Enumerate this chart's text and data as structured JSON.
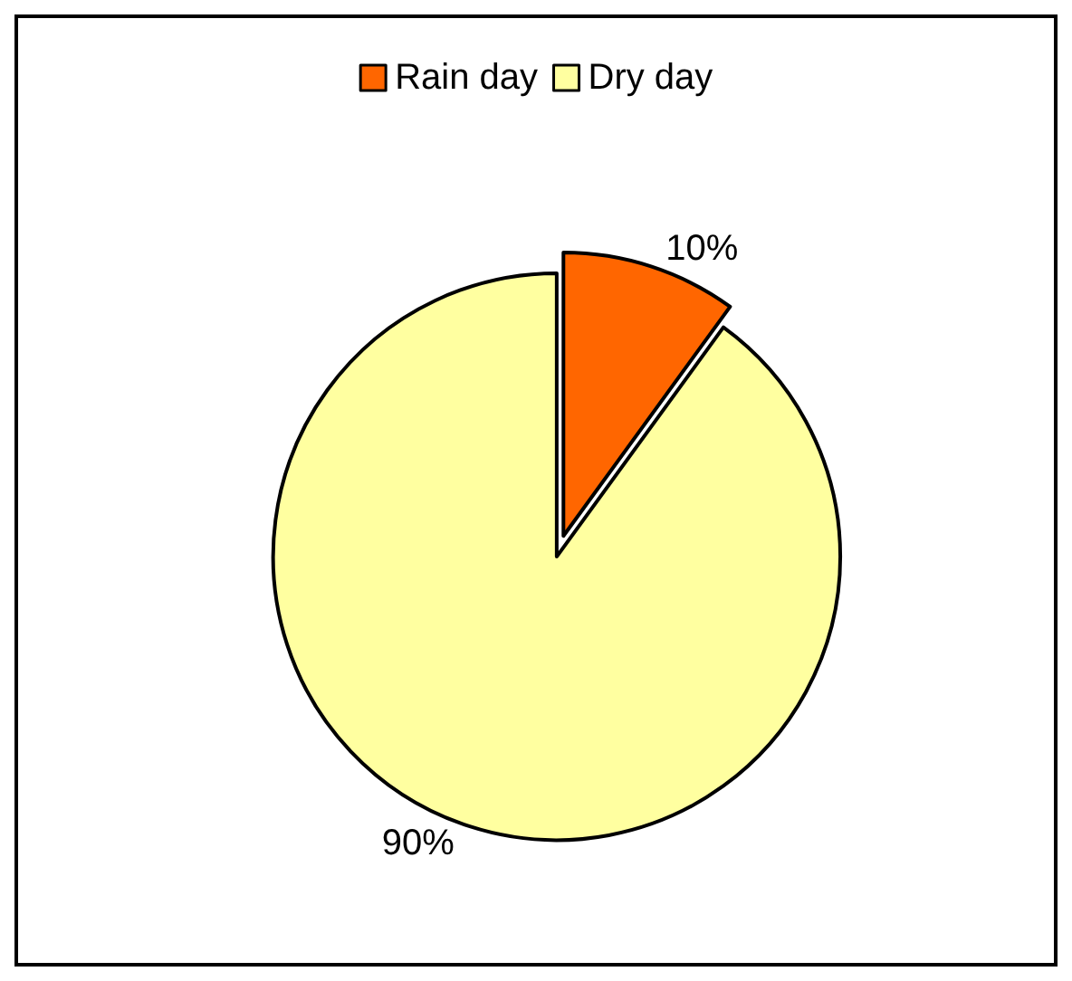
{
  "chart_data": {
    "type": "pie",
    "categories": [
      "Rain day",
      "Dry day"
    ],
    "values": [
      10,
      90
    ],
    "colors": [
      "#ff6600",
      "#ffffa0"
    ],
    "value_labels": [
      "10%",
      "90%"
    ],
    "legend": "top"
  }
}
